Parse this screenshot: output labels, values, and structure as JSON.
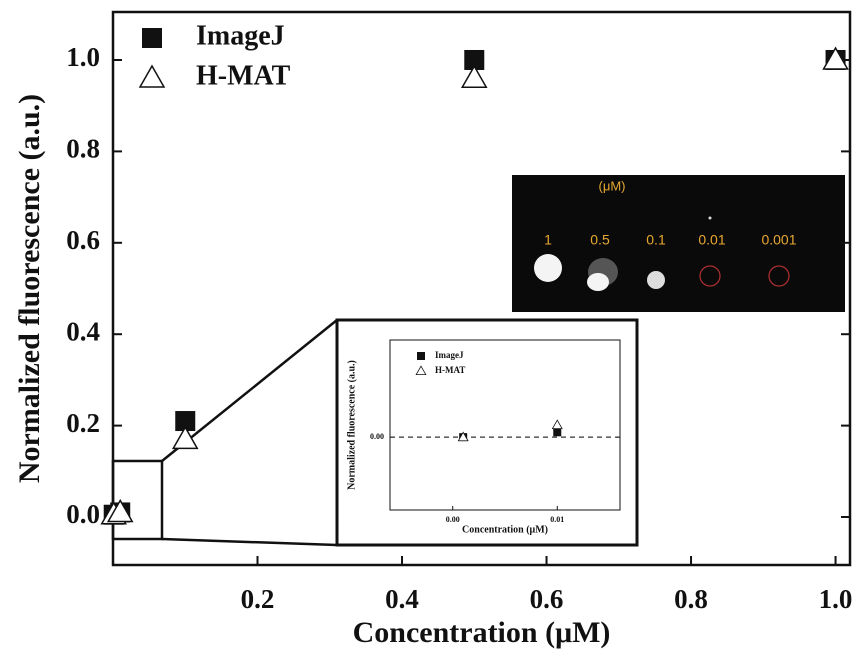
{
  "chart_data": [
    {
      "type": "scatter",
      "xlabel": "Concentration (μM)",
      "ylabel": "Normalized fluorescence (a.u.)",
      "x": [
        0.001,
        0.01,
        0.1,
        0.5,
        1.0
      ],
      "series": [
        {
          "name": "ImageJ",
          "color": "#111111",
          "marker": "square",
          "values": [
            0.005,
            0.01,
            0.21,
            1.0,
            1.0
          ]
        },
        {
          "name": "H-MAT",
          "color": "#111111",
          "marker": "triangle",
          "values": [
            0.005,
            0.01,
            0.17,
            0.96,
            1.0
          ]
        }
      ],
      "xlim": [
        0,
        1.02
      ],
      "ylim": [
        -0.105,
        1.105
      ],
      "xticks": [
        0.2,
        0.4,
        0.6,
        0.8,
        {
          "value": 1.0,
          "label": "1.0"
        }
      ],
      "yticks": [
        {
          "value": 0.0,
          "label": "0.0"
        },
        0.2,
        0.4,
        0.6,
        0.8,
        {
          "value": 1.0,
          "label": "1.0"
        }
      ],
      "legend": "upper-left"
    },
    {
      "type": "scatter",
      "xlabel": "Concentration (μM)",
      "ylabel": "Normalized fluorescence (a.u.)",
      "x": [
        0.001,
        0.01
      ],
      "series": [
        {
          "name": "ImageJ",
          "color": "#111111",
          "marker": "square",
          "values": [
            0.0,
            0.001
          ]
        },
        {
          "name": "H-MAT",
          "color": "#111111",
          "marker": "triangle",
          "values": [
            0.0,
            0.0025
          ]
        }
      ],
      "xlim": [
        -0.006,
        0.016
      ],
      "ylim": [
        -0.015,
        0.02
      ],
      "xticks": [
        {
          "value": 0.0,
          "label": "0.00"
        },
        {
          "value": 0.01,
          "label": "0.01"
        }
      ],
      "yticks": [
        {
          "value": 0.0,
          "label": "0.00"
        }
      ],
      "hline": 0,
      "legend": "upper-left"
    }
  ],
  "photo_inset": {
    "unit_label": "(μM)",
    "labels": [
      "1",
      "0.5",
      "0.1",
      "0.01",
      "0.001"
    ]
  }
}
